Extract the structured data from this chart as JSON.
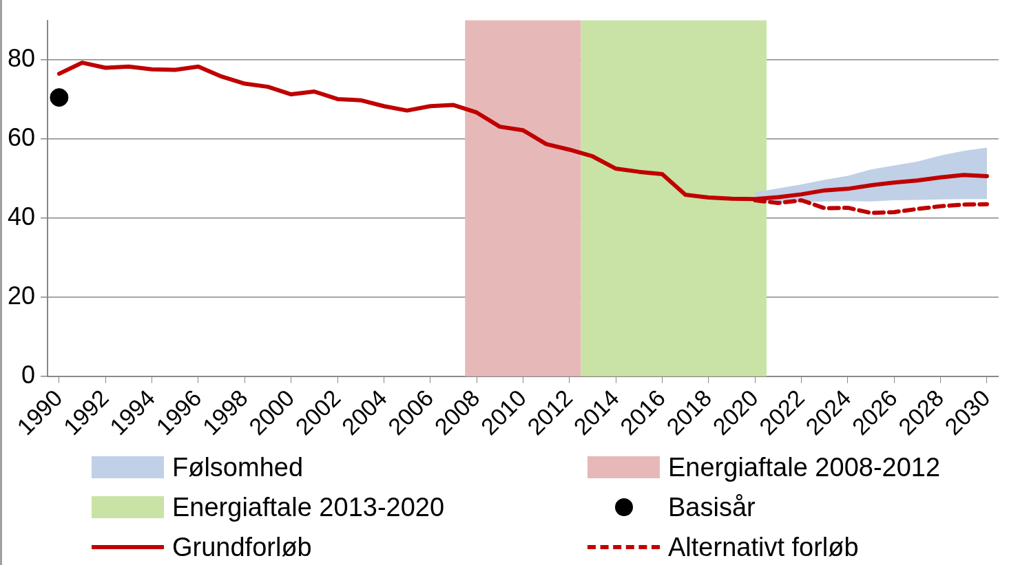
{
  "chart_data": {
    "type": "line",
    "xlim": [
      1989.5,
      2030.5
    ],
    "xticks": [
      1990,
      1992,
      1994,
      1996,
      1998,
      2000,
      2002,
      2004,
      2006,
      2008,
      2010,
      2012,
      2014,
      2016,
      2018,
      2020,
      2022,
      2024,
      2026,
      2028,
      2030
    ],
    "ylim": [
      0,
      90
    ],
    "yticks": [
      0,
      20,
      40,
      60,
      80
    ],
    "grid": "y",
    "legend": "bottom",
    "marker": "none",
    "bands": [
      {
        "axis": "x",
        "from": 2007.5,
        "to": 2012.5,
        "label": "Energiaftale 2008-2012",
        "color": "#e6b9b8"
      },
      {
        "axis": "x",
        "from": 2012.5,
        "to": 2020.5,
        "label": "Energiaftale 2013-2020",
        "color": "#c8e3a5"
      }
    ],
    "series": [
      {
        "name": "Følsomhed",
        "color": "#c0d0e6",
        "x": [
          2020,
          2021,
          2022,
          2023,
          2024,
          2025,
          2026,
          2027,
          2028,
          2029,
          2030
        ],
        "values": [
          null,
          null,
          null,
          null,
          null,
          null,
          null,
          null,
          null,
          null,
          null
        ],
        "upper": [
          46.5,
          47.5,
          48.5,
          49.7,
          50.7,
          52.3,
          53.3,
          54.3,
          55.8,
          57,
          57.8
        ],
        "lower": [
          44.5,
          44,
          44,
          44.2,
          44.3,
          44.2,
          44.5,
          44.6,
          44.7,
          44.8,
          44.8
        ]
      },
      {
        "name": "Basisår",
        "type": "scatter",
        "color": "#000000",
        "marker": "circle",
        "x": [
          1990
        ],
        "values": [
          70.5
        ]
      },
      {
        "name": "Grundforløb",
        "type": "line",
        "color": "#c00000",
        "line_style": "solid",
        "x": [
          1990,
          1991,
          1992,
          1993,
          1994,
          1995,
          1996,
          1997,
          1998,
          1999,
          2000,
          2001,
          2002,
          2003,
          2004,
          2005,
          2006,
          2007,
          2008,
          2009,
          2010,
          2011,
          2012,
          2013,
          2014,
          2015,
          2016,
          2017,
          2018,
          2019,
          2020,
          2021,
          2022,
          2023,
          2024,
          2025,
          2026,
          2027,
          2028,
          2029,
          2030
        ],
        "values": [
          76.5,
          79.3,
          78,
          78.3,
          77.6,
          77.5,
          78.3,
          75.8,
          74,
          73.2,
          71.3,
          72,
          70.1,
          69.8,
          68.3,
          67.2,
          68.3,
          68.6,
          66.7,
          63.1,
          62.2,
          58.7,
          57.3,
          55.6,
          52.5,
          51.7,
          51.1,
          45.9,
          45.2,
          44.9,
          44.8,
          45.3,
          46,
          47,
          47.4,
          48.3,
          49,
          49.5,
          50.3,
          50.9,
          50.6
        ]
      },
      {
        "name": "Alternativt forløb",
        "type": "line",
        "color": "#c00000",
        "line_style": "dashed",
        "x": [
          2020,
          2021,
          2022,
          2023,
          2024,
          2025,
          2026,
          2027,
          2028,
          2029,
          2030
        ],
        "values": [
          44.5,
          43.8,
          44.5,
          42.5,
          42.6,
          41.3,
          41.5,
          42.3,
          43,
          43.4,
          43.5
        ]
      }
    ]
  }
}
